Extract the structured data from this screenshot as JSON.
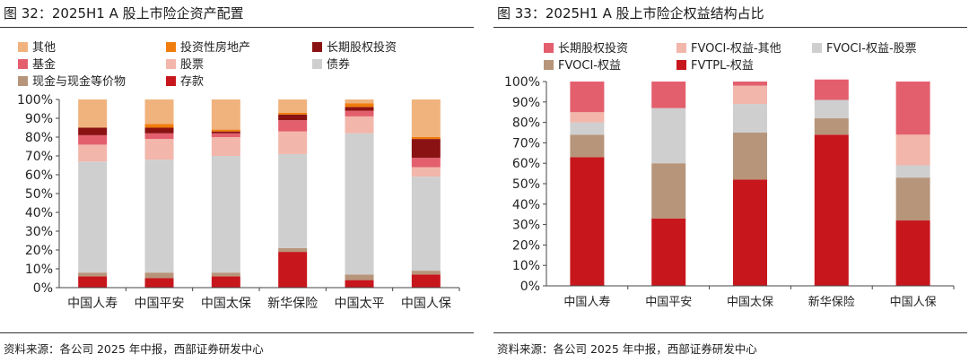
{
  "left": {
    "title": "图 32：2025H1 A 股上市险企资产配置",
    "source": "资料来源：各公司 2025 年中报，西部证券研发中心",
    "chart_data": {
      "type": "bar",
      "stacked": true,
      "categories": [
        "中国人寿",
        "中国平安",
        "中国太保",
        "新华保险",
        "中国太平",
        "中国人保"
      ],
      "y_ticks": [
        "0%",
        "10%",
        "20%",
        "30%",
        "40%",
        "50%",
        "60%",
        "70%",
        "80%",
        "90%",
        "100%"
      ],
      "ylim": [
        0,
        100
      ],
      "legend_position": "top",
      "series": [
        {
          "name": "存款",
          "color": "#c8161d",
          "values": [
            6,
            5,
            6,
            19,
            4,
            7
          ]
        },
        {
          "name": "现金与现金等价物",
          "color": "#b7957a",
          "values": [
            2,
            3,
            2,
            2,
            3,
            2
          ]
        },
        {
          "name": "债券",
          "color": "#cfcfcf",
          "values": [
            59,
            60,
            62,
            50,
            75,
            50
          ]
        },
        {
          "name": "股票",
          "color": "#f2b6ab",
          "values": [
            9,
            11,
            10,
            12,
            9,
            5
          ]
        },
        {
          "name": "基金",
          "color": "#e35f6e",
          "values": [
            5,
            3,
            2,
            6,
            3,
            5
          ]
        },
        {
          "name": "长期股权投资",
          "color": "#8b1212",
          "values": [
            4,
            3,
            1,
            3,
            2,
            10
          ]
        },
        {
          "name": "投资性房地产",
          "color": "#f07d0c",
          "values": [
            0,
            2,
            1,
            1,
            2,
            1
          ]
        },
        {
          "name": "其他",
          "color": "#f0b37e",
          "values": [
            15,
            13,
            16,
            7,
            2,
            20
          ]
        }
      ],
      "legend_order": [
        "其他",
        "投资性房地产",
        "长期股权投资",
        "基金",
        "股票",
        "债券",
        "现金与现金等价物",
        "存款"
      ]
    }
  },
  "right": {
    "title": "图 33：2025H1 A 股上市险企权益结构占比",
    "source": "资料来源：各公司 2025 年中报，西部证券研发中心",
    "chart_data": {
      "type": "bar",
      "stacked": true,
      "categories": [
        "中国人寿",
        "中国平安",
        "中国太保",
        "新华保险",
        "中国人保"
      ],
      "y_ticks": [
        "0%",
        "10%",
        "20%",
        "30%",
        "40%",
        "50%",
        "60%",
        "70%",
        "80%",
        "90%",
        "100%"
      ],
      "ylim": [
        0,
        100
      ],
      "legend_position": "top",
      "series": [
        {
          "name": "FVTPL-权益",
          "color": "#c8161d",
          "values": [
            63,
            33,
            52,
            74,
            32
          ]
        },
        {
          "name": "FVOCI-权益",
          "color": "#b7957a",
          "values": [
            11,
            27,
            23,
            8,
            21
          ]
        },
        {
          "name": "FVOCI-权益-股票",
          "color": "#cfcfcf",
          "values": [
            6,
            27,
            14,
            9,
            6
          ]
        },
        {
          "name": "FVOCI-权益-其他",
          "color": "#f2b6ab",
          "values": [
            5,
            0,
            9,
            0,
            15
          ]
        },
        {
          "name": "长期股权投资",
          "color": "#e35f6e",
          "values": [
            15,
            13,
            2,
            10,
            26
          ]
        }
      ],
      "legend_order": [
        "长期股权投资",
        "FVOCI-权益-其他",
        "FVOCI-权益-股票",
        "FVOCI-权益",
        "FVTPL-权益"
      ]
    }
  }
}
